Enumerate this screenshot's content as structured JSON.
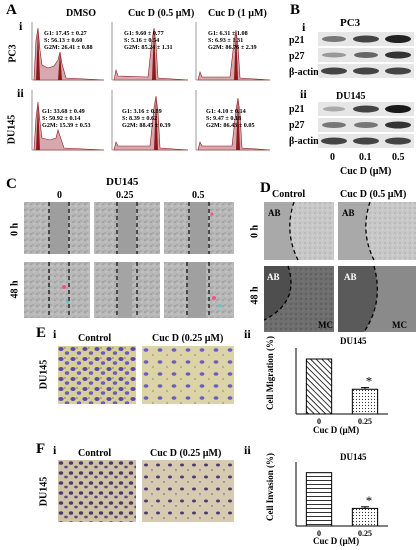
{
  "panelA": {
    "letter": "A",
    "sub_i": "i",
    "sub_ii": "ii",
    "row_labels": [
      "PC3",
      "DU145"
    ],
    "col_labels": [
      "DMSO",
      "Cuc D (0.5 µM)",
      "Cuc D (1 µM)"
    ],
    "stats": [
      [
        "G1: 17.45 ± 0.27",
        "S: 56.13 ± 0.60",
        "G2M: 26.41 ± 0.88"
      ],
      [
        "G1: 9.60 ± 0.77",
        "S: 5.16 ± 0.54",
        "G2M: 85.24 ± 1.31"
      ],
      [
        "G1: 6.31 ± 1.08",
        "S: 6.93 ± 1.31",
        "G2M: 86.76 ± 2.39"
      ],
      [
        "G1: 33.68 ± 0.49",
        "S: 50.92 ± 0.14",
        "G2M: 15.39 ± 0.53"
      ],
      [
        "G1: 3.16 ± 0.89",
        "S: 8.39 ± 0.62",
        "G2M: 88.45 ± 0.39"
      ],
      [
        "G1: 4.10 ± 0.14",
        "S: 9.47 ± 0.18",
        "G2M: 86.43 ± 0.05"
      ]
    ]
  },
  "panelB": {
    "letter": "B",
    "sub_i": "i",
    "sub_ii": "ii",
    "title_i": "PC3",
    "title_ii": "DU145",
    "bands": [
      "p21",
      "p27",
      "β-actin"
    ],
    "ticks": [
      "0",
      "0.1",
      "0.5"
    ],
    "xlabel": "Cuc D (µM)"
  },
  "panelC": {
    "letter": "C",
    "title": "DU145",
    "cols": [
      "0",
      "0.25",
      "0.5"
    ],
    "rows": [
      "0 h",
      "48 h"
    ]
  },
  "panelD": {
    "letter": "D",
    "cols": [
      "Control",
      "Cuc D (0.5 µM)"
    ],
    "rows": [
      "0 h",
      "48 h"
    ],
    "ab": "AB",
    "mc": "MC"
  },
  "panelE": {
    "letter": "E",
    "sub_i": "i",
    "sub_ii": "ii",
    "row_label": "DU145",
    "cols": [
      "Control",
      "Cuc D (0.25 µM)"
    ]
  },
  "panelF": {
    "letter": "F",
    "sub_i": "i",
    "sub_ii": "ii",
    "row_label": "DU145",
    "cols": [
      "Control",
      "Cuc D (0.25 µM)"
    ]
  },
  "chart_data": [
    {
      "type": "bar",
      "title": "DU145",
      "categories": [
        "0",
        "0.25"
      ],
      "values": [
        100,
        45
      ],
      "errors": [
        0,
        3
      ],
      "significance": [
        "",
        "*"
      ],
      "ylabel": "Cell Migration (%)",
      "xlabel": "Cuc D (µM)",
      "ylim": [
        0,
        120
      ],
      "patterns": [
        "diagonal-hatch",
        "dots"
      ]
    },
    {
      "type": "bar",
      "title": "DU145",
      "categories": [
        "0",
        "0.25"
      ],
      "values": [
        100,
        33
      ],
      "errors": [
        0,
        3
      ],
      "significance": [
        "",
        "*"
      ],
      "ylabel": "Cell Invasion (%)",
      "xlabel": "Cuc D (µM)",
      "ylim": [
        0,
        120
      ],
      "patterns": [
        "horizontal-lines",
        "dots"
      ]
    }
  ]
}
